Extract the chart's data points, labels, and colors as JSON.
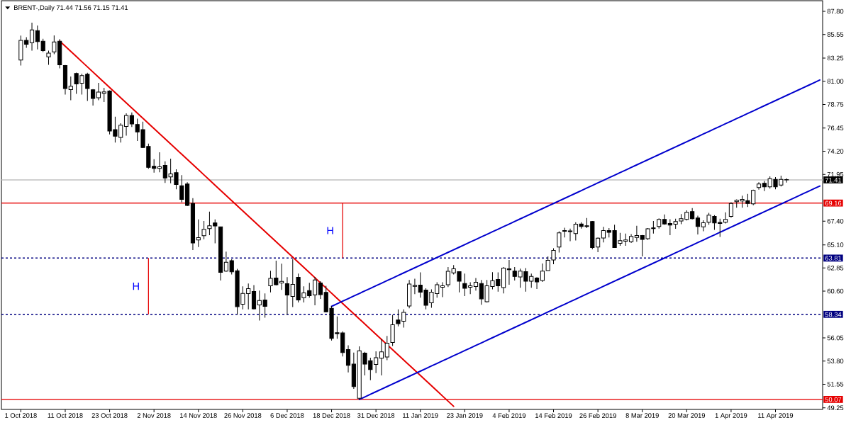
{
  "chart_data": {
    "type": "candlestick",
    "title": "BRENT-,Daily 71.44 71.56 71.15 71.41",
    "color": "#000000",
    "categories": [
      "1 Oct 2018",
      null,
      null,
      null,
      null,
      null,
      null,
      null,
      "11 Oct 2018",
      null,
      null,
      null,
      null,
      null,
      null,
      null,
      "23 Oct 2018",
      null,
      null,
      null,
      null,
      null,
      null,
      null,
      "2 Nov 2018",
      null,
      null,
      null,
      null,
      null,
      null,
      null,
      "14 Nov 2018",
      null,
      null,
      null,
      null,
      null,
      null,
      null,
      "26 Nov 2018",
      null,
      null,
      null,
      null,
      null,
      null,
      null,
      "6 Dec 2018",
      null,
      null,
      null,
      null,
      null,
      null,
      null,
      "18 Dec 2018",
      null,
      null,
      null,
      null,
      null,
      null,
      null,
      "31 Dec 2018",
      null,
      null,
      null,
      null,
      null,
      null,
      null,
      "11 Jan 2019",
      null,
      null,
      null,
      null,
      null,
      null,
      null,
      "23 Jan 2019",
      null,
      null,
      null,
      null,
      null,
      null,
      null,
      "4 Feb 2019",
      null,
      null,
      null,
      null,
      null,
      null,
      null,
      "14 Feb 2019",
      null,
      null,
      null,
      null,
      null,
      null,
      null,
      "26 Feb 2019",
      null,
      null,
      null,
      null,
      null,
      null,
      null,
      "8 Mar 2019",
      null,
      null,
      null,
      null,
      null,
      null,
      null,
      "20 Mar 2019",
      null,
      null,
      null,
      null,
      null,
      null,
      null,
      "1 Apr 2019",
      null,
      null,
      null,
      null,
      null,
      null,
      null,
      "11 Apr 2019",
      null,
      null,
      null,
      null,
      null,
      null,
      null,
      null
    ],
    "ohlc": [
      [
        83.06,
        85.44,
        82.53,
        84.98
      ],
      [
        84.98,
        85.28,
        84.25,
        84.59
      ],
      [
        84.75,
        86.7,
        83.97,
        85.99
      ],
      [
        85.92,
        86.42,
        84.09,
        84.86
      ],
      [
        84.89,
        85.12,
        83.83,
        83.97
      ],
      [
        83.38,
        83.97,
        82.6,
        83.74
      ],
      [
        83.86,
        85.46,
        83.63,
        84.82
      ],
      [
        84.89,
        85.1,
        82.25,
        82.6
      ],
      [
        82.53,
        82.58,
        79.71,
        80.29
      ],
      [
        80.19,
        81.46,
        79.16,
        80.51
      ],
      [
        81.75,
        81.84,
        79.78,
        80.74
      ],
      [
        80.81,
        81.73,
        79.71,
        81.55
      ],
      [
        81.68,
        81.82,
        79.09,
        80.29
      ],
      [
        80.17,
        80.24,
        78.64,
        79.33
      ],
      [
        79.39,
        80.84,
        79.16,
        79.94
      ],
      [
        79.83,
        80.36,
        78.98,
        79.96
      ],
      [
        80.05,
        80.12,
        75.84,
        76.16
      ],
      [
        76.3,
        77.56,
        75.04,
        75.66
      ],
      [
        75.54,
        76.92,
        75.04,
        76.73
      ],
      [
        76.6,
        77.88,
        75.72,
        77.67
      ],
      [
        77.67,
        77.97,
        76.55,
        76.85
      ],
      [
        76.8,
        77.37,
        75.2,
        76.07
      ],
      [
        76.3,
        77.08,
        74.51,
        74.56
      ],
      [
        74.67,
        74.93,
        72.49,
        72.63
      ],
      [
        72.73,
        73.43,
        72.11,
        72.52
      ],
      [
        72.52,
        74.1,
        72.15,
        72.68
      ],
      [
        72.82,
        73.21,
        71.12,
        71.6
      ],
      [
        71.7,
        73.48,
        71.08,
        71.99
      ],
      [
        72.11,
        72.45,
        70.5,
        70.96
      ],
      [
        70.84,
        71.87,
        69.24,
        69.52
      ],
      [
        71.01,
        71.19,
        68.86,
        68.93
      ],
      [
        69.12,
        69.63,
        64.59,
        65.28
      ],
      [
        65.58,
        67.57,
        64.89,
        65.79
      ],
      [
        65.99,
        67.41,
        65.65,
        66.61
      ],
      [
        66.68,
        68.33,
        66.03,
        66.95
      ],
      [
        67.23,
        67.57,
        65.24,
        66.93
      ],
      [
        66.84,
        66.84,
        61.63,
        62.42
      ],
      [
        62.55,
        64.43,
        62.48,
        63.4
      ],
      [
        63.56,
        63.7,
        62.21,
        62.48
      ],
      [
        62.57,
        62.76,
        58.31,
        59.09
      ],
      [
        59.32,
        61.06,
        58.82,
        60.38
      ],
      [
        60.35,
        61.34,
        58.82,
        60.84
      ],
      [
        60.56,
        61.18,
        58.82,
        58.88
      ],
      [
        59.26,
        60.65,
        57.74,
        59.69
      ],
      [
        59.74,
        60.38,
        58.02,
        59.12
      ],
      [
        61.11,
        62.57,
        60.47,
        61.84
      ],
      [
        61.87,
        63.56,
        61.15,
        61.22
      ],
      [
        61.39,
        63.26,
        60.72,
        61.55
      ],
      [
        61.32,
        61.96,
        58.29,
        60.22
      ],
      [
        60.08,
        63.7,
        59.05,
        61.25
      ],
      [
        61.94,
        62.3,
        59.5,
        59.74
      ],
      [
        59.96,
        61.06,
        59.5,
        60.42
      ],
      [
        60.65,
        61.41,
        59.96,
        60.15
      ],
      [
        60.24,
        61.98,
        59.23,
        61.68
      ],
      [
        61.39,
        61.57,
        59.85,
        60.26
      ],
      [
        60.47,
        61.11,
        58.54,
        58.59
      ],
      [
        58.93,
        59.16,
        55.79,
        56.0
      ],
      [
        56.55,
        58.13,
        55.96,
        56.46
      ],
      [
        56.53,
        56.69,
        54.24,
        54.63
      ],
      [
        54.92,
        55.34,
        52.7,
        53.39
      ],
      [
        53.5,
        54.62,
        51.1,
        51.32
      ],
      [
        50.18,
        55.22,
        50.07,
        54.79
      ],
      [
        54.58,
        54.69,
        52.4,
        53.5
      ],
      [
        53.83,
        54.12,
        51.94,
        52.97
      ],
      [
        53.48,
        54.74,
        52.63,
        54.12
      ],
      [
        54.07,
        55.91,
        52.4,
        54.69
      ],
      [
        54.19,
        56.25,
        53.89,
        55.54
      ],
      [
        55.61,
        58.29,
        55.27,
        57.33
      ],
      [
        57.79,
        58.82,
        57.17,
        57.44
      ],
      [
        57.67,
        58.82,
        57.06,
        58.54
      ],
      [
        59.16,
        61.68,
        58.93,
        61.29
      ],
      [
        61.06,
        61.8,
        60.31,
        61.15
      ],
      [
        61.18,
        62.42,
        59.96,
        60.49
      ],
      [
        60.7,
        60.88,
        58.82,
        59.23
      ],
      [
        59.46,
        60.77,
        58.98,
        60.49
      ],
      [
        60.35,
        61.46,
        59.96,
        61.22
      ],
      [
        60.97,
        61.46,
        60.01,
        61.11
      ],
      [
        61.22,
        62.94,
        60.99,
        62.53
      ],
      [
        62.37,
        63.13,
        62.21,
        62.76
      ],
      [
        62.49,
        62.49,
        60.47,
        61.57
      ],
      [
        61.34,
        62.3,
        60.12,
        60.88
      ],
      [
        60.97,
        61.46,
        60.31,
        61.11
      ],
      [
        61.04,
        61.87,
        60.65,
        61.46
      ],
      [
        61.34,
        61.68,
        59.28,
        59.85
      ],
      [
        59.57,
        61.68,
        59.5,
        61.11
      ],
      [
        61.04,
        62.44,
        60.77,
        61.61
      ],
      [
        61.73,
        62.42,
        60.54,
        61.11
      ],
      [
        60.95,
        62.94,
        60.38,
        62.83
      ],
      [
        62.76,
        63.63,
        61.22,
        62.69
      ],
      [
        62.55,
        62.94,
        61.63,
        62.02
      ],
      [
        61.98,
        62.78,
        60.92,
        62.55
      ],
      [
        62.49,
        62.83,
        60.54,
        61.57
      ],
      [
        61.57,
        62.3,
        60.92,
        62.03
      ],
      [
        61.87,
        61.96,
        60.81,
        61.5
      ],
      [
        61.63,
        63.28,
        61.5,
        62.55
      ],
      [
        62.6,
        63.97,
        62.6,
        63.59
      ],
      [
        63.63,
        64.77,
        63.22,
        64.55
      ],
      [
        64.89,
        66.42,
        64.36,
        66.27
      ],
      [
        66.49,
        66.77,
        65.81,
        66.42
      ],
      [
        66.38,
        66.68,
        65.46,
        66.45
      ],
      [
        66.2,
        67.3,
        65.53,
        67.11
      ],
      [
        67.13,
        67.3,
        66.68,
        66.88
      ],
      [
        66.95,
        67.71,
        66.72,
        66.88
      ],
      [
        67.37,
        67.41,
        64.66,
        64.84
      ],
      [
        64.89,
        65.81,
        64.38,
        65.74
      ],
      [
        65.76,
        66.84,
        65.34,
        66.49
      ],
      [
        66.49,
        66.72,
        65.81,
        66.31
      ],
      [
        66.49,
        67.06,
        64.84,
        64.84
      ],
      [
        65.24,
        66.27,
        65.0,
        65.51
      ],
      [
        65.46,
        66.2,
        65.0,
        65.58
      ],
      [
        65.41,
        66.15,
        65.28,
        65.92
      ],
      [
        65.81,
        66.95,
        65.41,
        66.0
      ],
      [
        66.01,
        66.06,
        63.97,
        65.62
      ],
      [
        65.69,
        66.72,
        65.58,
        66.65
      ],
      [
        66.75,
        67.41,
        66.2,
        66.68
      ],
      [
        66.88,
        67.68,
        66.68,
        67.57
      ],
      [
        67.57,
        68.05,
        67.06,
        67.13
      ],
      [
        67.18,
        67.59,
        66.03,
        67.02
      ],
      [
        67.11,
        67.64,
        66.65,
        67.37
      ],
      [
        67.41,
        68.09,
        67.11,
        67.64
      ],
      [
        67.57,
        68.44,
        67.47,
        68.26
      ],
      [
        68.33,
        68.67,
        67.57,
        67.64
      ],
      [
        67.71,
        67.94,
        66.1,
        66.88
      ],
      [
        66.84,
        67.48,
        66.42,
        67.25
      ],
      [
        67.3,
        68.21,
        67.06,
        67.99
      ],
      [
        67.87,
        67.99,
        66.56,
        67.23
      ],
      [
        67.27,
        67.64,
        65.87,
        67.18
      ],
      [
        67.3,
        68.26,
        67.18,
        67.57
      ],
      [
        67.87,
        69.24,
        67.75,
        69.12
      ],
      [
        69.29,
        69.52,
        68.71,
        69.43
      ],
      [
        69.36,
        69.88,
        68.71,
        69.52
      ],
      [
        69.4,
        70.05,
        68.78,
        69.12
      ],
      [
        69.08,
        70.46,
        68.95,
        70.39
      ],
      [
        70.67,
        71.19,
        70.46,
        71.01
      ],
      [
        71.08,
        71.3,
        70.32,
        70.73
      ],
      [
        70.73,
        71.76,
        70.57,
        71.53
      ],
      [
        71.46,
        71.69,
        70.5,
        70.73
      ],
      [
        70.91,
        71.83,
        70.77,
        71.46
      ],
      [
        71.44,
        71.56,
        71.15,
        71.41
      ],
      null,
      null,
      null,
      null,
      null,
      null
    ],
    "series": [
      {
        "type": "line",
        "color": "#e60000",
        "values": [
          null,
          null,
          null,
          null,
          null,
          null,
          null,
          84.9,
          84.4,
          83.9,
          83.4,
          82.9,
          82.4,
          81.9,
          81.4,
          80.9,
          80.4,
          79.9,
          79.4,
          78.9,
          78.4,
          77.9,
          77.4,
          76.9,
          76.4,
          75.9,
          75.4,
          74.9,
          74.4,
          73.9,
          73.4,
          72.9,
          72.4,
          71.9,
          71.4,
          70.9,
          70.4,
          69.9,
          69.4,
          68.9,
          68.4,
          67.9,
          67.4,
          66.9,
          66.4,
          65.9,
          65.4,
          64.9,
          64.4,
          63.9,
          63.4,
          62.9,
          62.4,
          61.9,
          61.4,
          60.9,
          60.4,
          59.9,
          59.4,
          58.9,
          58.4,
          57.9,
          57.4,
          56.9,
          56.4,
          55.9,
          55.4,
          54.9,
          54.4,
          53.9,
          53.4,
          52.9,
          52.4,
          51.9,
          51.4,
          50.9,
          50.4,
          49.9,
          49.4,
          null,
          null,
          null,
          null,
          null,
          null,
          null,
          null,
          null,
          null,
          null,
          null,
          null,
          null,
          null,
          null,
          null,
          null,
          null,
          null,
          null,
          null,
          null,
          null,
          null,
          null,
          null,
          null,
          null,
          null,
          null,
          null,
          null,
          null,
          null,
          null,
          null,
          null,
          null,
          null,
          null,
          null,
          null,
          null,
          null,
          null,
          null,
          null,
          null,
          null,
          null,
          null,
          null,
          null,
          null,
          null,
          null,
          null,
          null,
          null,
          null,
          null,
          null,
          null,
          null,
          null
        ]
      },
      {
        "type": "line",
        "color": "#0000cd",
        "values": [
          null,
          null,
          null,
          null,
          null,
          null,
          null,
          null,
          null,
          null,
          null,
          null,
          null,
          null,
          null,
          null,
          null,
          null,
          null,
          null,
          null,
          null,
          null,
          null,
          null,
          null,
          null,
          null,
          null,
          null,
          null,
          null,
          null,
          null,
          null,
          null,
          null,
          null,
          null,
          null,
          null,
          null,
          null,
          null,
          null,
          null,
          null,
          null,
          null,
          null,
          null,
          null,
          null,
          null,
          null,
          null,
          59.12,
          59.37,
          59.62,
          59.87,
          60.12,
          60.37,
          60.62,
          60.87,
          61.12,
          61.37,
          61.62,
          61.87,
          62.12,
          62.37,
          62.62,
          62.87,
          63.12,
          63.37,
          63.62,
          63.87,
          64.12,
          64.37,
          64.62,
          64.87,
          65.12,
          65.37,
          65.62,
          65.87,
          66.12,
          66.37,
          66.62,
          66.87,
          67.12,
          67.37,
          67.62,
          67.87,
          68.12,
          68.37,
          68.62,
          68.87,
          69.12,
          69.37,
          69.62,
          69.87,
          70.12,
          70.37,
          70.62,
          70.87,
          71.12,
          71.37,
          71.62,
          71.87,
          72.12,
          72.37,
          72.62,
          72.87,
          73.12,
          73.37,
          73.62,
          73.87,
          74.12,
          74.37,
          74.62,
          74.87,
          75.12,
          75.37,
          75.62,
          75.87,
          76.12,
          76.37,
          76.62,
          76.87,
          77.12,
          77.37,
          77.62,
          77.87,
          78.12,
          78.37,
          78.62,
          78.87,
          79.12,
          79.37,
          79.62,
          79.87,
          80.12,
          80.37,
          80.62,
          80.87,
          81.12
        ]
      },
      {
        "type": "line",
        "color": "#0000cd",
        "values": [
          null,
          null,
          null,
          null,
          null,
          null,
          null,
          null,
          null,
          null,
          null,
          null,
          null,
          null,
          null,
          null,
          null,
          null,
          null,
          null,
          null,
          null,
          null,
          null,
          null,
          null,
          null,
          null,
          null,
          null,
          null,
          null,
          null,
          null,
          null,
          null,
          null,
          null,
          null,
          null,
          null,
          null,
          null,
          null,
          null,
          null,
          null,
          null,
          null,
          null,
          null,
          null,
          null,
          null,
          null,
          null,
          null,
          null,
          null,
          null,
          null,
          50.07,
          50.32,
          50.57,
          50.82,
          51.07,
          51.32,
          51.57,
          51.82,
          52.07,
          52.32,
          52.57,
          52.82,
          53.07,
          53.32,
          53.57,
          53.82,
          54.07,
          54.32,
          54.57,
          54.82,
          55.07,
          55.32,
          55.57,
          55.82,
          56.07,
          56.32,
          56.57,
          56.82,
          57.07,
          57.32,
          57.57,
          57.82,
          58.07,
          58.32,
          58.57,
          58.82,
          59.07,
          59.32,
          59.57,
          59.82,
          60.07,
          60.32,
          60.57,
          60.82,
          61.07,
          61.32,
          61.57,
          61.82,
          62.07,
          62.32,
          62.57,
          62.82,
          63.07,
          63.32,
          63.57,
          63.82,
          64.07,
          64.32,
          64.57,
          64.82,
          65.07,
          65.32,
          65.57,
          65.82,
          66.07,
          66.32,
          66.57,
          66.82,
          67.07,
          67.32,
          67.57,
          67.82,
          68.07,
          68.32,
          68.57,
          68.82,
          69.07,
          69.32,
          69.57,
          69.82,
          70.07,
          70.32,
          70.57,
          70.82
        ]
      },
      {
        "type": "bar",
        "name": "H",
        "color": "#e60000",
        "values": [
          null,
          null,
          null,
          null,
          null,
          null,
          null,
          null,
          null,
          null,
          null,
          null,
          null,
          null,
          null,
          null,
          null,
          null,
          null,
          null,
          null,
          null,
          null,
          5.47,
          null,
          null,
          null,
          null,
          null,
          null,
          null,
          null,
          null,
          null,
          null,
          null,
          null,
          null,
          null,
          null,
          null,
          null,
          null,
          null,
          null,
          null,
          null,
          null,
          null,
          null,
          null,
          null,
          null,
          null,
          null,
          null,
          null,
          null,
          null,
          null,
          null,
          null,
          null,
          null,
          null,
          null,
          null,
          null,
          null,
          null,
          null,
          null,
          null,
          null,
          null,
          null,
          null,
          null,
          null,
          null,
          null,
          null,
          null,
          null,
          null,
          null,
          null,
          null,
          null,
          null,
          null,
          null,
          null,
          null,
          null,
          null,
          null,
          null,
          null,
          null,
          null,
          null,
          null,
          null,
          null,
          null,
          null,
          null,
          null,
          null,
          null,
          null,
          null,
          null,
          null,
          null,
          null,
          null,
          null,
          null,
          null,
          null,
          null,
          null,
          null,
          null,
          null,
          null,
          null,
          null,
          null,
          null,
          null,
          null,
          null,
          null,
          null,
          null,
          null,
          null,
          null,
          null,
          null,
          null,
          null
        ],
        "base": [
          null,
          null,
          null,
          null,
          null,
          null,
          null,
          null,
          null,
          null,
          null,
          null,
          null,
          null,
          null,
          null,
          null,
          null,
          null,
          null,
          null,
          null,
          null,
          58.34,
          null,
          null,
          null,
          null,
          null,
          null,
          null,
          null,
          null,
          null,
          null,
          null,
          null,
          null,
          null,
          null,
          null,
          null,
          null,
          null,
          null,
          null,
          null,
          null,
          null,
          null,
          null,
          null,
          null,
          null,
          null,
          null,
          null,
          null,
          null,
          null,
          null,
          null,
          null,
          null,
          null,
          null,
          null,
          null,
          null,
          null,
          null,
          null,
          null,
          null,
          null,
          null,
          null,
          null,
          null,
          null,
          null,
          null,
          null,
          null,
          null,
          null,
          null,
          null,
          null,
          null,
          null,
          null,
          null,
          null,
          null,
          null,
          null,
          null,
          null,
          null,
          null,
          null,
          null,
          null,
          null,
          null,
          null,
          null,
          null,
          null,
          null,
          null,
          null,
          null,
          null,
          null,
          null,
          null,
          null,
          null,
          null,
          null,
          null,
          null,
          null,
          null,
          null,
          null,
          null,
          null,
          null,
          null,
          null,
          null,
          null,
          null,
          null,
          null,
          null,
          null,
          null,
          null,
          null,
          null,
          null
        ]
      },
      {
        "type": "bar",
        "name": "H",
        "color": "#e60000",
        "values": [
          null,
          null,
          null,
          null,
          null,
          null,
          null,
          null,
          null,
          null,
          null,
          null,
          null,
          null,
          null,
          null,
          null,
          null,
          null,
          null,
          null,
          null,
          null,
          null,
          null,
          null,
          null,
          null,
          null,
          null,
          null,
          null,
          null,
          null,
          null,
          null,
          null,
          null,
          null,
          null,
          null,
          null,
          null,
          null,
          null,
          null,
          null,
          null,
          null,
          null,
          null,
          null,
          null,
          null,
          null,
          null,
          null,
          null,
          5.35,
          null,
          null,
          null,
          null,
          null,
          null,
          null,
          null,
          null,
          null,
          null,
          null,
          null,
          null,
          null,
          null,
          null,
          null,
          null,
          null,
          null,
          null,
          null,
          null,
          null,
          null,
          null,
          null,
          null,
          null,
          null,
          null,
          null,
          null,
          null,
          null,
          null,
          null,
          null,
          null,
          null,
          null,
          null,
          null,
          null,
          null,
          null,
          null,
          null,
          null,
          null,
          null,
          null,
          null,
          null,
          null,
          null,
          null,
          null,
          null,
          null,
          null,
          null,
          null,
          null,
          null,
          null,
          null,
          null,
          null,
          null,
          null,
          null,
          null,
          null,
          null,
          null,
          null,
          null,
          null,
          null,
          null,
          null,
          null,
          null,
          null
        ],
        "base": [
          null,
          null,
          null,
          null,
          null,
          null,
          null,
          null,
          null,
          null,
          null,
          null,
          null,
          null,
          null,
          null,
          null,
          null,
          null,
          null,
          null,
          null,
          null,
          null,
          null,
          null,
          null,
          null,
          null,
          null,
          null,
          null,
          null,
          null,
          null,
          null,
          null,
          null,
          null,
          null,
          null,
          null,
          null,
          null,
          null,
          null,
          null,
          null,
          null,
          null,
          null,
          null,
          null,
          null,
          null,
          null,
          null,
          null,
          63.81,
          null,
          null,
          null,
          null,
          null,
          null,
          null,
          null,
          null,
          null,
          null,
          null,
          null,
          null,
          null,
          null,
          null,
          null,
          null,
          null,
          null,
          null,
          null,
          null,
          null,
          null,
          null,
          null,
          null,
          null,
          null,
          null,
          null,
          null,
          null,
          null,
          null,
          null,
          null,
          null,
          null,
          null,
          null,
          null,
          null,
          null,
          null,
          null,
          null,
          null,
          null,
          null,
          null,
          null,
          null,
          null,
          null,
          null,
          null,
          null,
          null,
          null,
          null,
          null,
          null,
          null,
          null,
          null,
          null,
          null,
          null,
          null,
          null,
          null,
          null,
          null,
          null,
          null,
          null,
          null,
          null,
          null,
          null,
          null,
          null,
          null
        ]
      }
    ],
    "ref_lines": [
      {
        "axis": "y",
        "value": 71.41,
        "label": "71.41",
        "color": "#c0c0c0"
      },
      {
        "axis": "y",
        "value": 69.16,
        "label": "69.16",
        "color": "#e60000"
      },
      {
        "axis": "y",
        "value": 63.81,
        "label": "63.81",
        "color": "#000080",
        "line_style": "dashed"
      },
      {
        "axis": "y",
        "value": 58.34,
        "label": "58.34",
        "color": "#000080",
        "line_style": "dashed"
      },
      {
        "axis": "y",
        "value": 50.07,
        "label": "50.07",
        "color": "#e60000"
      }
    ],
    "ylim": [
      49.1,
      88.83
    ],
    "yticks": [
      {
        "value": 87.8,
        "label": "87.80"
      },
      85.55,
      83.25,
      {
        "value": 81.0,
        "label": "81.00"
      },
      78.75,
      76.45,
      {
        "value": 74.2,
        "label": "74.20"
      },
      71.95,
      {
        "value": 67.4,
        "label": "67.40"
      },
      {
        "value": 65.1,
        "label": "65.10"
      },
      62.85,
      {
        "value": 60.6,
        "label": "60.60"
      },
      56.05,
      {
        "value": 53.8,
        "label": "53.80"
      },
      51.55,
      49.25
    ]
  }
}
